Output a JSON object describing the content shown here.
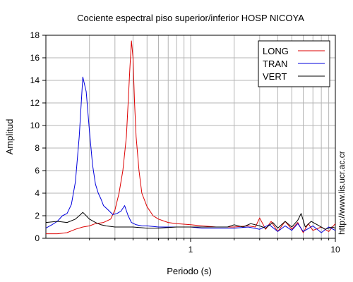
{
  "chart_data": {
    "type": "line",
    "title": "Cociente espectral piso superior/inferior  HOSP NICOYA",
    "xlabel": "Periodo (s)",
    "ylabel": "Amplitud",
    "x_scale": "log",
    "xlim": [
      0.1,
      10
    ],
    "ylim": [
      0,
      18
    ],
    "x_ticks": [
      {
        "value": 1,
        "label": "1"
      },
      {
        "value": 10,
        "label": "10"
      }
    ],
    "y_ticks": [
      {
        "value": 0,
        "label": "0"
      },
      {
        "value": 2,
        "label": "2"
      },
      {
        "value": 4,
        "label": "4"
      },
      {
        "value": 6,
        "label": "6"
      },
      {
        "value": 8,
        "label": "8"
      },
      {
        "value": 10,
        "label": "10"
      },
      {
        "value": 12,
        "label": "12"
      },
      {
        "value": 14,
        "label": "14"
      },
      {
        "value": 16,
        "label": "16"
      },
      {
        "value": 18,
        "label": "18"
      }
    ],
    "grid": true,
    "legend_position": "top-right",
    "watermark": "http://www.lis.ucr.ac.cr",
    "series": [
      {
        "name": "LONG",
        "color": "#dd0000",
        "x": [
          0.1,
          0.12,
          0.14,
          0.16,
          0.18,
          0.2,
          0.22,
          0.25,
          0.28,
          0.3,
          0.32,
          0.34,
          0.36,
          0.37,
          0.38,
          0.39,
          0.4,
          0.41,
          0.42,
          0.44,
          0.46,
          0.5,
          0.55,
          0.6,
          0.7,
          0.8,
          1.0,
          1.2,
          1.5,
          2.0,
          2.5,
          2.8,
          3.0,
          3.3,
          3.6,
          4.0,
          4.5,
          5.0,
          5.5,
          6.0,
          6.5,
          7.0,
          8.0,
          9.0,
          10.0
        ],
        "y": [
          0.4,
          0.4,
          0.5,
          0.8,
          1.0,
          1.1,
          1.3,
          1.4,
          1.7,
          2.5,
          4.0,
          6.0,
          9.0,
          12.0,
          15.0,
          17.5,
          16.0,
          12.0,
          9.0,
          6.0,
          4.0,
          2.8,
          2.0,
          1.7,
          1.4,
          1.3,
          1.2,
          1.1,
          1.0,
          1.0,
          1.1,
          1.0,
          1.8,
          0.8,
          1.5,
          0.6,
          1.5,
          0.8,
          1.4,
          0.5,
          1.3,
          0.7,
          1.0,
          0.6,
          1.3
        ]
      },
      {
        "name": "TRAN",
        "color": "#0000dd",
        "x": [
          0.1,
          0.11,
          0.12,
          0.13,
          0.14,
          0.15,
          0.16,
          0.17,
          0.18,
          0.19,
          0.2,
          0.21,
          0.22,
          0.23,
          0.24,
          0.25,
          0.27,
          0.29,
          0.31,
          0.33,
          0.35,
          0.37,
          0.39,
          0.42,
          0.46,
          0.5,
          0.6,
          0.7,
          0.8,
          1.0,
          1.2,
          1.5,
          2.0,
          2.5,
          3.0,
          3.5,
          4.0,
          4.5,
          5.0,
          5.5,
          6.0,
          7.0,
          8.0,
          9.0,
          10.0
        ],
        "y": [
          0.9,
          1.2,
          1.5,
          2.0,
          2.2,
          3.0,
          5.0,
          9.0,
          14.3,
          13.0,
          9.5,
          6.5,
          4.8,
          4.0,
          3.5,
          2.9,
          2.5,
          2.1,
          2.2,
          2.4,
          2.9,
          2.0,
          1.4,
          1.2,
          1.1,
          1.1,
          1.0,
          1.0,
          1.0,
          1.0,
          0.9,
          0.9,
          0.9,
          1.0,
          0.8,
          1.2,
          0.6,
          1.1,
          0.7,
          1.3,
          0.6,
          1.1,
          0.5,
          1.0,
          0.7
        ]
      },
      {
        "name": "VERT",
        "color": "#000000",
        "x": [
          0.1,
          0.12,
          0.14,
          0.16,
          0.17,
          0.18,
          0.19,
          0.2,
          0.22,
          0.24,
          0.26,
          0.3,
          0.35,
          0.4,
          0.5,
          0.6,
          0.8,
          1.0,
          1.2,
          1.5,
          1.8,
          2.0,
          2.3,
          2.6,
          3.0,
          3.3,
          3.7,
          4.0,
          4.5,
          5.0,
          5.5,
          5.8,
          6.2,
          6.8,
          7.5,
          8.5,
          9.5,
          10.0
        ],
        "y": [
          1.4,
          1.5,
          1.4,
          1.7,
          2.0,
          2.3,
          2.0,
          1.7,
          1.4,
          1.2,
          1.1,
          1.0,
          1.0,
          1.0,
          0.9,
          0.9,
          1.0,
          1.0,
          1.0,
          1.0,
          1.0,
          1.2,
          1.0,
          1.3,
          1.1,
          0.9,
          1.4,
          0.9,
          1.5,
          1.0,
          1.6,
          2.2,
          1.0,
          1.5,
          1.2,
          0.8,
          1.0,
          0.9
        ]
      }
    ]
  }
}
